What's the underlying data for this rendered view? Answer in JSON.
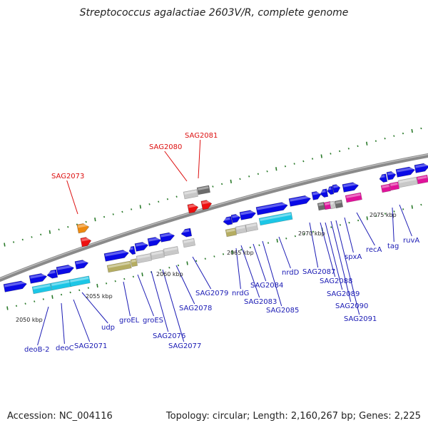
{
  "title": "Streptococcus agalactiae 2603V/R, complete genome",
  "accession": "Accession: NC_004116",
  "topology": "Topology: circular; Length: 2,160,267 bp; Genes: 2,225",
  "kbp_labels": [
    "2050 kbp",
    "2055 kbp",
    "2060 kbp",
    "2065 kbp",
    "2070 kbp",
    "2075 kbp"
  ],
  "colors": {
    "blue_gene": "#0a0ae6",
    "cyan_feature": "#1cc6e6",
    "gray_gene": "#c8c8c8",
    "dark_gray": "#6c6c6c",
    "olive": "#b5ad62",
    "magenta": "#e0139a",
    "orange": "#ee8a10",
    "red": "#ee1010",
    "tick_green": "#2a7a2a",
    "label_blue": "#1a1ab4",
    "label_red": "#dd1010"
  },
  "gene_labels": [
    {
      "text": "SAG2073",
      "color": "red"
    },
    {
      "text": "SAG2080",
      "color": "red"
    },
    {
      "text": "SAG2081",
      "color": "red"
    },
    {
      "text": "deoB-2",
      "color": "blue"
    },
    {
      "text": "deoC",
      "color": "blue"
    },
    {
      "text": "SAG2071",
      "color": "blue"
    },
    {
      "text": "udp",
      "color": "blue"
    },
    {
      "text": "groEL",
      "color": "blue"
    },
    {
      "text": "groES",
      "color": "blue"
    },
    {
      "text": "SAG2076",
      "color": "blue"
    },
    {
      "text": "SAG2077",
      "color": "blue"
    },
    {
      "text": "SAG2078",
      "color": "blue"
    },
    {
      "text": "SAG2079",
      "color": "blue"
    },
    {
      "text": "nrdG",
      "color": "blue"
    },
    {
      "text": "SAG2083",
      "color": "blue"
    },
    {
      "text": "SAG2084",
      "color": "blue"
    },
    {
      "text": "SAG2085",
      "color": "blue"
    },
    {
      "text": "nrdD",
      "color": "blue"
    },
    {
      "text": "SAG2087",
      "color": "blue"
    },
    {
      "text": "SAG2088",
      "color": "blue"
    },
    {
      "text": "SAG2089",
      "color": "blue"
    },
    {
      "text": "SAG2090",
      "color": "blue"
    },
    {
      "text": "SAG2091",
      "color": "blue"
    },
    {
      "text": "spxA",
      "color": "blue"
    },
    {
      "text": "recA",
      "color": "blue"
    },
    {
      "text": "tag",
      "color": "blue"
    },
    {
      "text": "ruvA",
      "color": "blue"
    }
  ]
}
